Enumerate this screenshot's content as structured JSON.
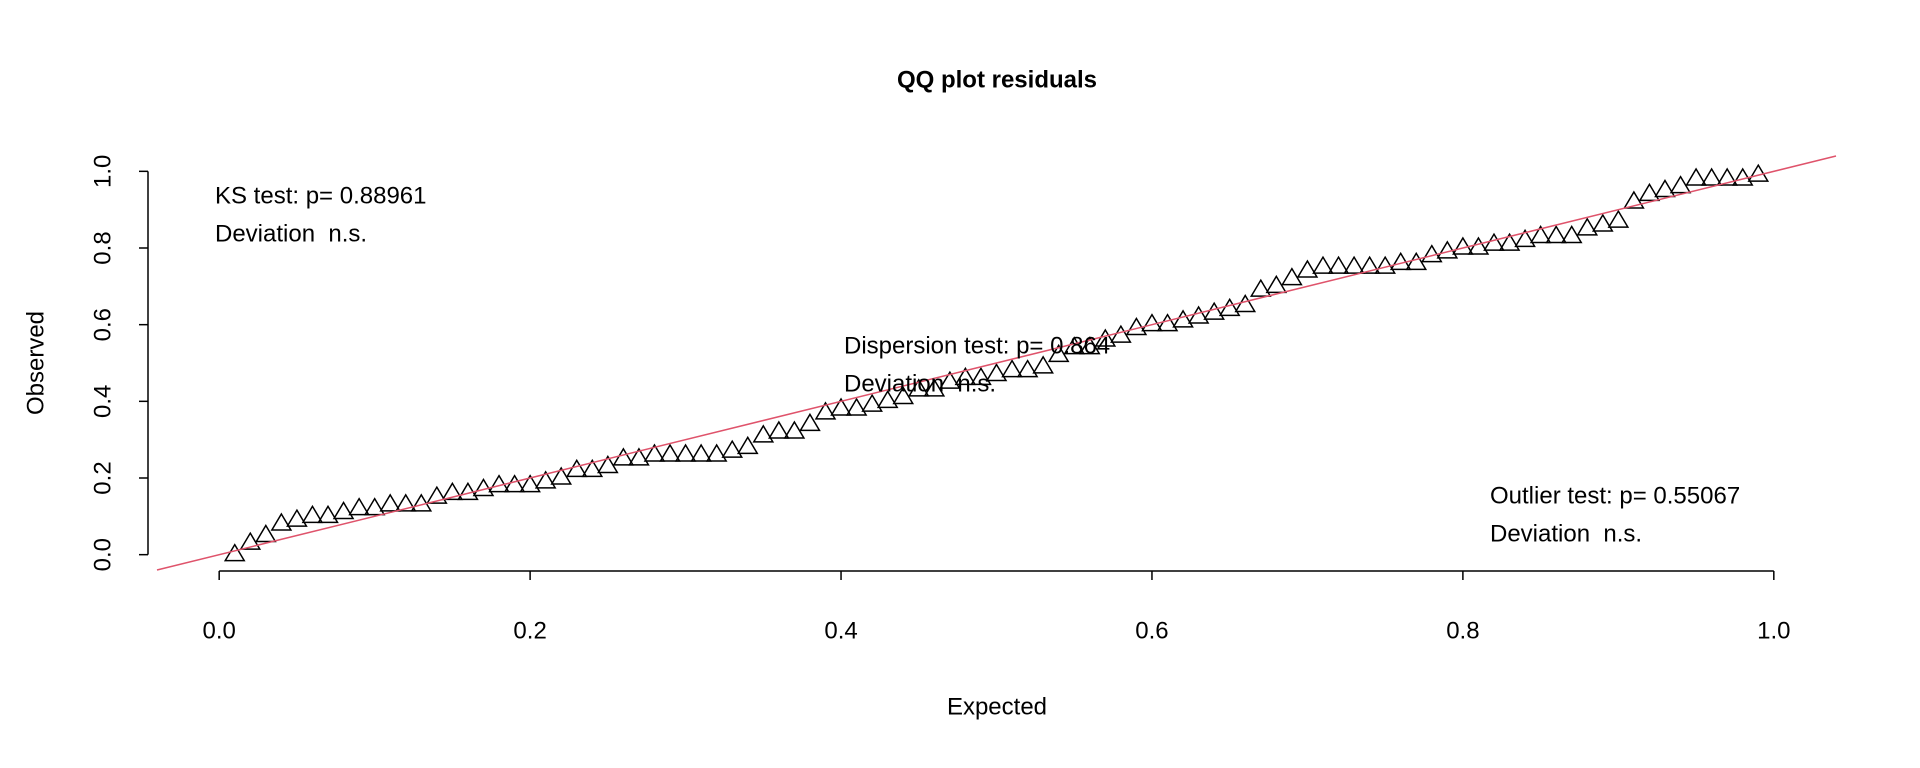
{
  "chart_data": {
    "type": "scatter",
    "title": "QQ plot residuals",
    "x_label": "Expected",
    "y_label": "Observed",
    "series": [
      {
        "color": "#000000",
        "x": [
          0.01,
          0.02,
          0.03,
          0.04,
          0.05,
          0.06,
          0.07,
          0.08,
          0.09,
          0.1,
          0.11,
          0.12,
          0.13,
          0.14,
          0.15,
          0.16,
          0.17,
          0.18,
          0.19,
          0.2,
          0.21,
          0.22,
          0.23,
          0.24,
          0.25,
          0.26,
          0.27,
          0.28,
          0.29,
          0.3,
          0.31,
          0.32,
          0.33,
          0.34,
          0.35,
          0.36,
          0.37,
          0.38,
          0.39,
          0.4,
          0.41,
          0.42,
          0.43,
          0.44,
          0.45,
          0.46,
          0.47,
          0.48,
          0.49,
          0.5,
          0.51,
          0.52,
          0.53,
          0.54,
          0.55,
          0.56,
          0.57,
          0.58,
          0.59,
          0.6,
          0.61,
          0.62,
          0.63,
          0.64,
          0.65,
          0.66,
          0.67,
          0.68,
          0.69,
          0.7,
          0.71,
          0.72,
          0.73,
          0.74,
          0.75,
          0.76,
          0.77,
          0.78,
          0.79,
          0.8,
          0.81,
          0.82,
          0.83,
          0.84,
          0.85,
          0.86,
          0.87,
          0.88,
          0.89,
          0.9,
          0.91,
          0.92,
          0.93,
          0.94,
          0.95,
          0.96,
          0.97,
          0.98,
          0.99
        ],
        "values": [
          0.0,
          0.03,
          0.05,
          0.08,
          0.09,
          0.1,
          0.1,
          0.11,
          0.12,
          0.12,
          0.13,
          0.13,
          0.13,
          0.15,
          0.16,
          0.16,
          0.17,
          0.18,
          0.18,
          0.18,
          0.19,
          0.2,
          0.22,
          0.22,
          0.23,
          0.25,
          0.25,
          0.26,
          0.26,
          0.26,
          0.26,
          0.26,
          0.27,
          0.28,
          0.31,
          0.32,
          0.32,
          0.34,
          0.37,
          0.38,
          0.38,
          0.39,
          0.4,
          0.41,
          0.43,
          0.43,
          0.45,
          0.46,
          0.46,
          0.47,
          0.48,
          0.48,
          0.49,
          0.52,
          0.54,
          0.54,
          0.56,
          0.57,
          0.59,
          0.6,
          0.6,
          0.61,
          0.62,
          0.63,
          0.64,
          0.65,
          0.69,
          0.7,
          0.72,
          0.74,
          0.75,
          0.75,
          0.75,
          0.75,
          0.75,
          0.76,
          0.76,
          0.78,
          0.79,
          0.8,
          0.8,
          0.81,
          0.81,
          0.82,
          0.83,
          0.83,
          0.83,
          0.85,
          0.86,
          0.87,
          0.92,
          0.94,
          0.95,
          0.96,
          0.98,
          0.98,
          0.98,
          0.98,
          0.99
        ]
      }
    ],
    "reference_line": {
      "intercept": 0,
      "slope": 1,
      "color": "#DF536B"
    },
    "xlim": [
      -0.04,
      1.04
    ],
    "ylim": [
      -0.04,
      1.04
    ],
    "xticks": [
      {
        "value": 0,
        "label": "0.0"
      },
      0.2,
      0.4,
      0.6,
      0.8,
      {
        "value": 1,
        "label": "1.0"
      }
    ],
    "yticks": [
      {
        "value": 0,
        "label": "0.0"
      },
      0.2,
      0.4,
      0.6,
      0.8,
      {
        "value": 1,
        "label": "1.0"
      }
    ],
    "annotations": [
      [
        "KS test: p= 0.88961",
        "Deviation  n.s."
      ],
      [
        "Dispersion test: p= 0.864",
        "Deviation  n.s."
      ],
      [
        "Outlier test: p= 0.55067",
        "Deviation  n.s."
      ]
    ]
  }
}
